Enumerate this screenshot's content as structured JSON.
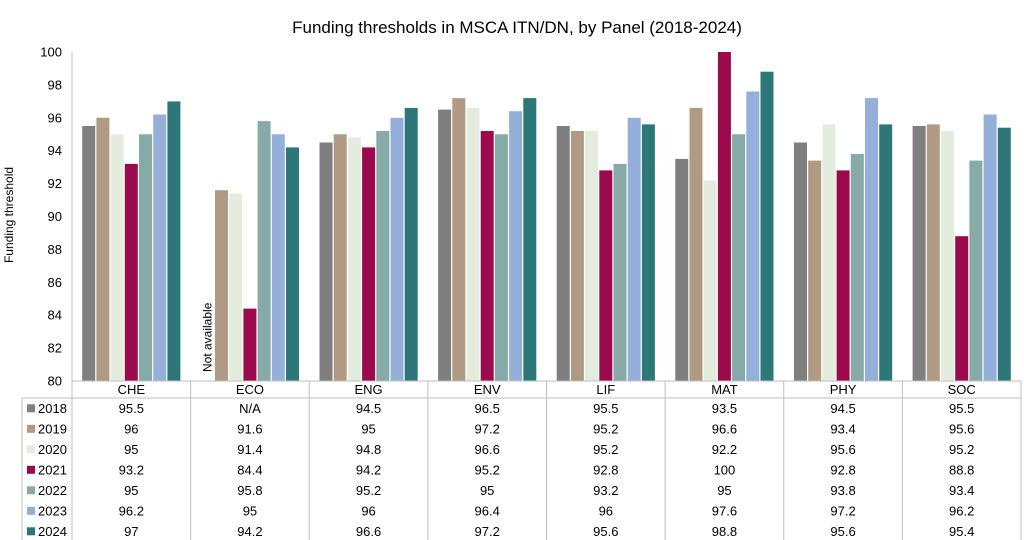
{
  "chart_data": {
    "type": "bar",
    "title": "Funding thresholds in MSCA ITN/DN, by Panel (2018-2024)",
    "ylabel": "Funding threshold",
    "xlabel": "",
    "ylim": [
      80,
      100
    ],
    "yticks": [
      80,
      82,
      84,
      86,
      88,
      90,
      92,
      94,
      96,
      98,
      100
    ],
    "grid": false,
    "legend": "data-table",
    "categories": [
      "CHE",
      "ECO",
      "ENG",
      "ENV",
      "LIF",
      "MAT",
      "PHY",
      "SOC"
    ],
    "annotation": "Not available",
    "series": [
      {
        "name": "2018",
        "color": "#7f7f7f",
        "values": [
          95.5,
          null,
          94.5,
          96.5,
          95.5,
          93.5,
          94.5,
          95.5
        ],
        "table": [
          "95.5",
          "N/A",
          "94.5",
          "96.5",
          "95.5",
          "93.5",
          "94.5",
          "95.5"
        ]
      },
      {
        "name": "2019",
        "color": "#b09a83",
        "values": [
          96,
          91.6,
          95,
          97.2,
          95.2,
          96.6,
          93.4,
          95.6
        ],
        "table": [
          "96",
          "91.6",
          "95",
          "97.2",
          "95.2",
          "96.6",
          "93.4",
          "95.6"
        ]
      },
      {
        "name": "2020",
        "color": "#e3ecdd",
        "values": [
          95,
          91.4,
          94.8,
          96.6,
          95.2,
          92.2,
          95.6,
          95.2
        ],
        "table": [
          "95",
          "91.4",
          "94.8",
          "96.6",
          "95.2",
          "92.2",
          "95.6",
          "95.2"
        ]
      },
      {
        "name": "2021",
        "color": "#9c0a4e",
        "values": [
          93.2,
          84.4,
          94.2,
          95.2,
          92.8,
          100,
          92.8,
          88.8
        ],
        "table": [
          "93.2",
          "84.4",
          "94.2",
          "95.2",
          "92.8",
          "100",
          "92.8",
          "88.8"
        ]
      },
      {
        "name": "2022",
        "color": "#85aaa8",
        "values": [
          95,
          95.8,
          95.2,
          95,
          93.2,
          95,
          93.8,
          93.4
        ],
        "table": [
          "95",
          "95.8",
          "95.2",
          "95",
          "93.2",
          "95",
          "93.8",
          "93.4"
        ]
      },
      {
        "name": "2023",
        "color": "#94b0da",
        "values": [
          96.2,
          95,
          96,
          96.4,
          96,
          97.6,
          97.2,
          96.2
        ],
        "table": [
          "96.2",
          "95",
          "96",
          "96.4",
          "96",
          "97.6",
          "97.2",
          "96.2"
        ]
      },
      {
        "name": "2024",
        "color": "#2e7779",
        "values": [
          97,
          94.2,
          96.6,
          97.2,
          95.6,
          98.8,
          95.6,
          95.4
        ],
        "table": [
          "97",
          "94.2",
          "96.6",
          "97.2",
          "95.6",
          "98.8",
          "95.6",
          "95.4"
        ]
      }
    ]
  }
}
